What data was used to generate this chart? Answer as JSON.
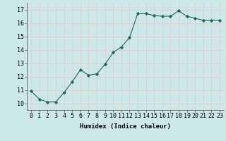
{
  "x": [
    0,
    1,
    2,
    3,
    4,
    5,
    6,
    7,
    8,
    9,
    10,
    11,
    12,
    13,
    14,
    15,
    16,
    17,
    18,
    19,
    20,
    21,
    22,
    23
  ],
  "y": [
    10.9,
    10.3,
    10.1,
    10.1,
    10.8,
    11.6,
    12.5,
    12.1,
    12.2,
    12.9,
    13.8,
    14.2,
    14.9,
    16.7,
    16.7,
    16.55,
    16.5,
    16.5,
    16.9,
    16.5,
    16.35,
    16.2,
    16.2,
    16.2
  ],
  "line_color": "#1a6b5a",
  "marker": "D",
  "marker_size": 2.2,
  "bg_color": "#cce8e8",
  "grid_color": "#e8c8c8",
  "xlabel": "Humidex (Indice chaleur)",
  "xlim": [
    -0.5,
    23.5
  ],
  "ylim": [
    9.5,
    17.5
  ],
  "yticks": [
    10,
    11,
    12,
    13,
    14,
    15,
    16,
    17
  ],
  "xticks": [
    0,
    1,
    2,
    3,
    4,
    5,
    6,
    7,
    8,
    9,
    10,
    11,
    12,
    13,
    14,
    15,
    16,
    17,
    18,
    19,
    20,
    21,
    22,
    23
  ],
  "label_fontsize": 6.5,
  "tick_fontsize": 6.0
}
